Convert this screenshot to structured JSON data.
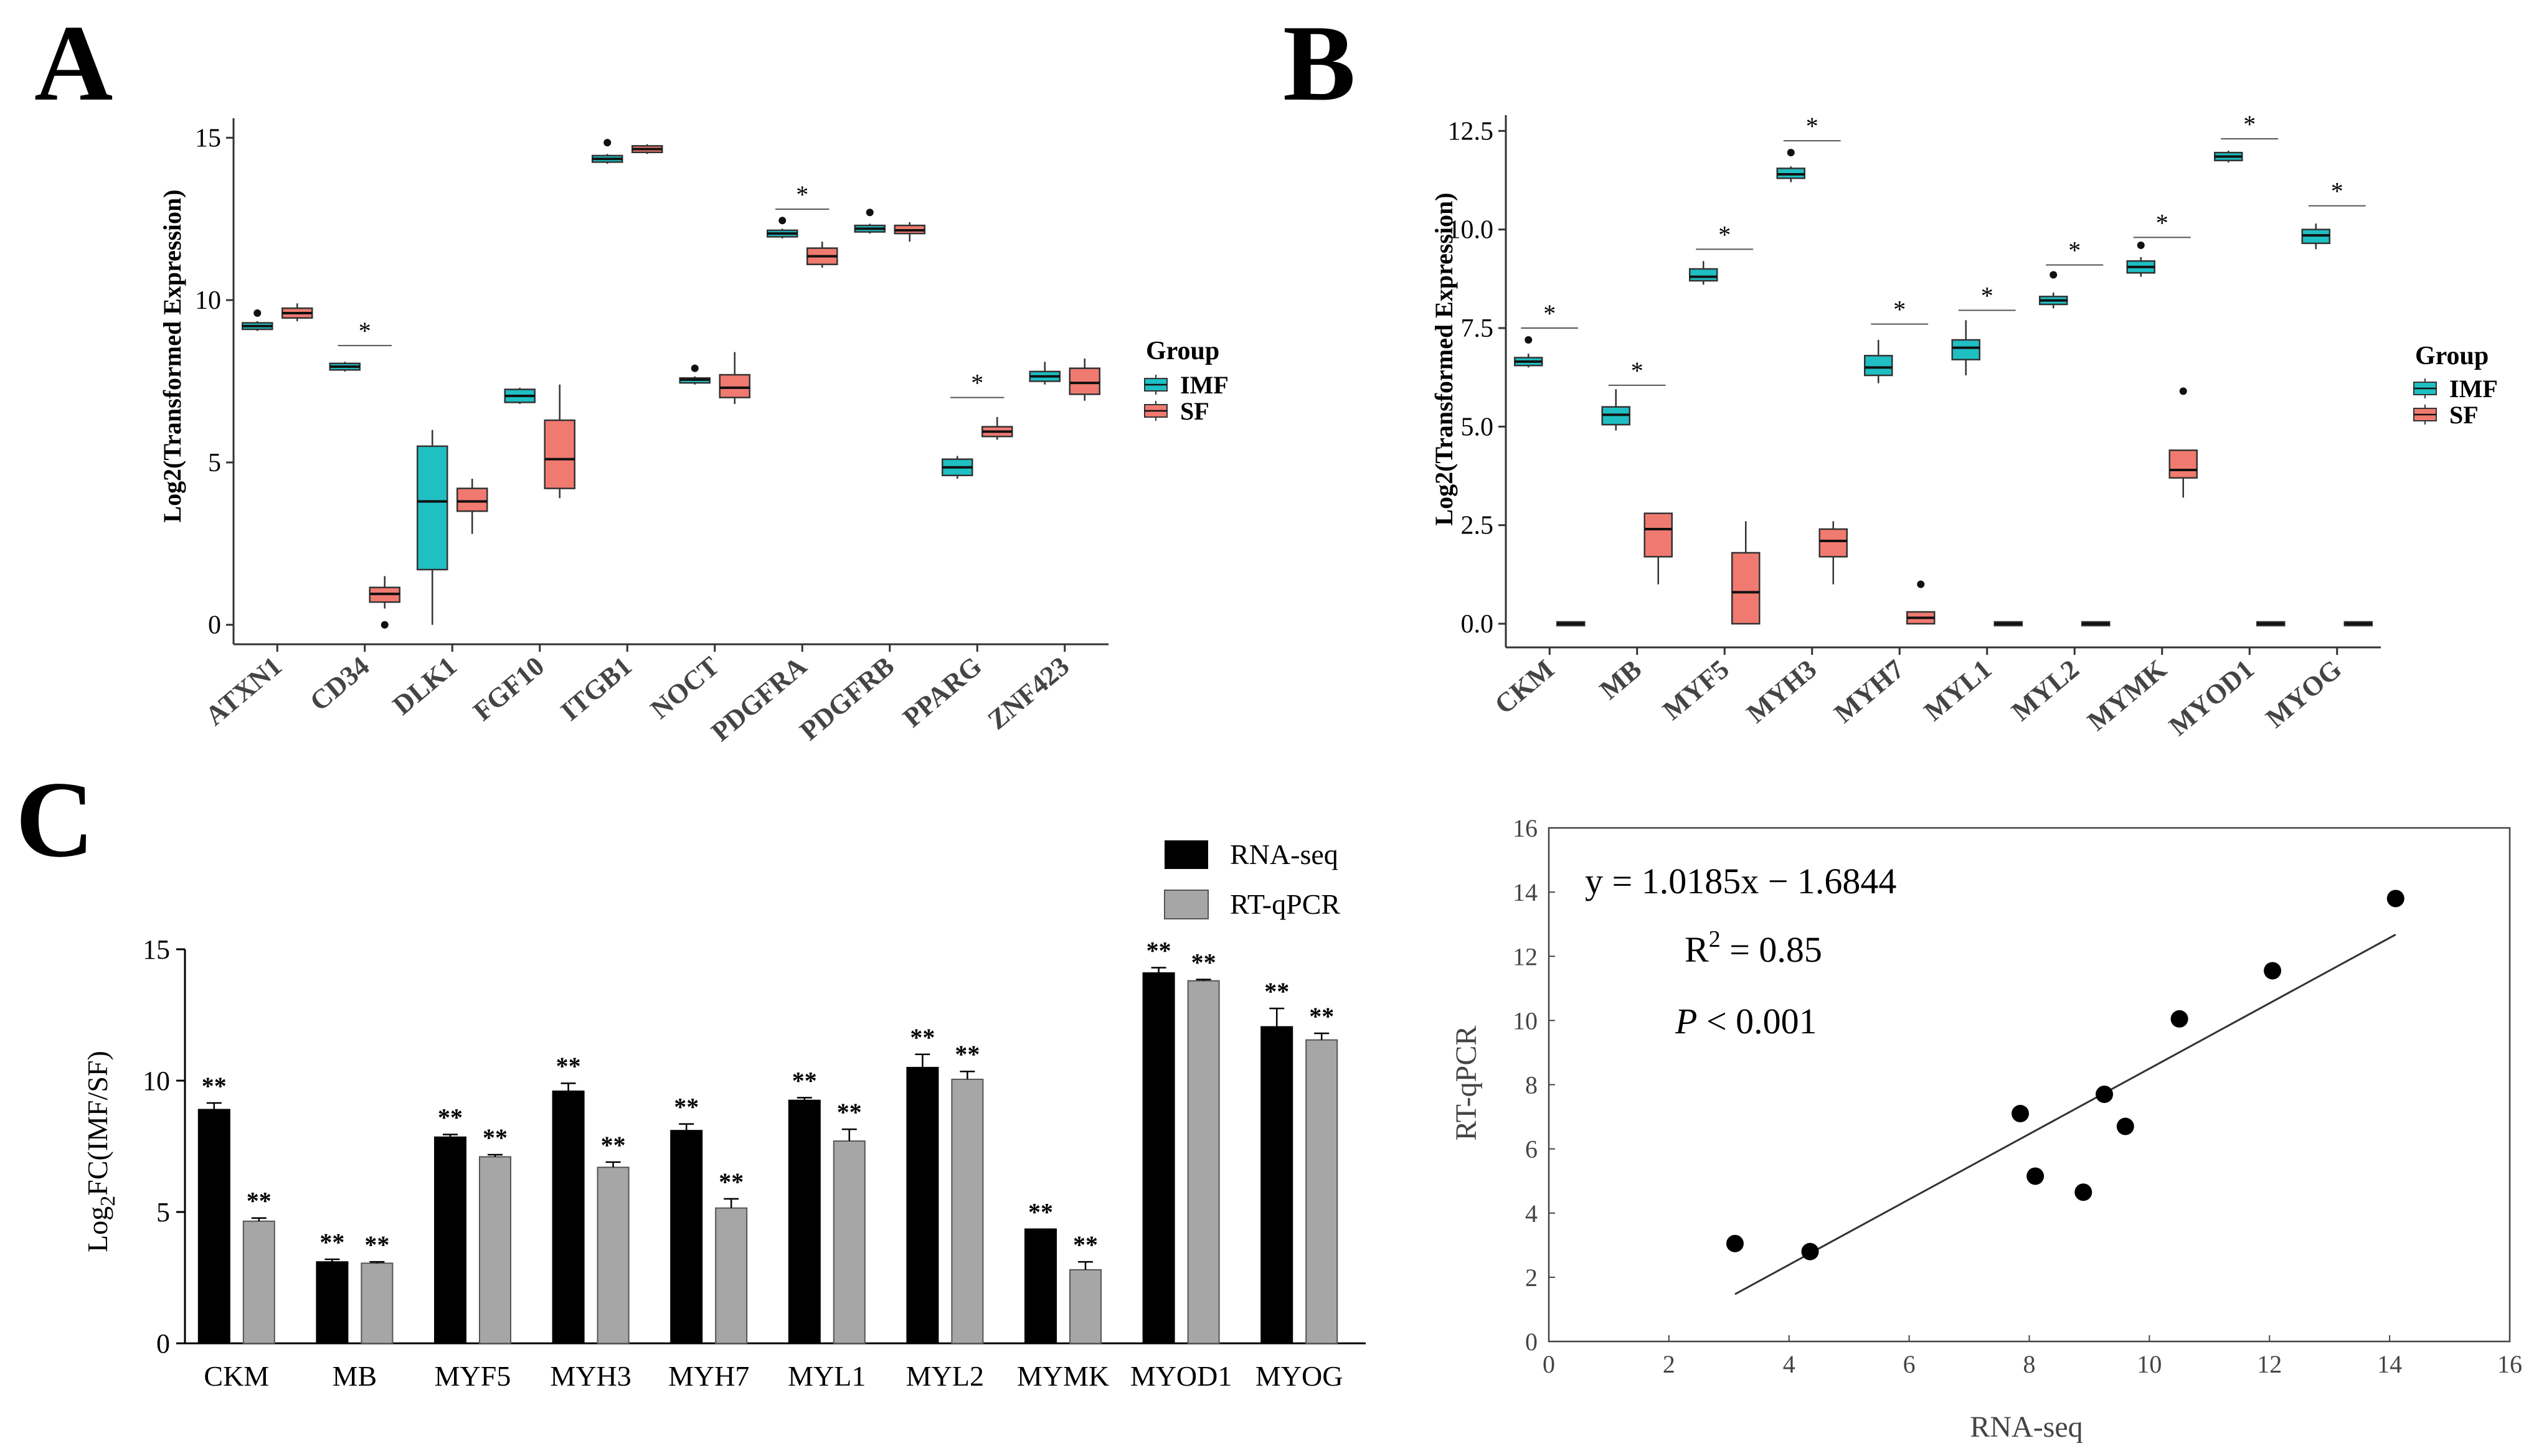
{
  "panel_labels": {
    "a": "A",
    "b": "B",
    "c": "C"
  },
  "colors": {
    "imf": "#1fbfc3",
    "sf": "#f17a70",
    "rnaseq": "#000000",
    "qpcr": "#a6a6a6"
  },
  "chart_data": [
    {
      "id": "A",
      "type": "box",
      "ylabel": "Log2(Transformed Expression)",
      "ylim": [
        -0.6,
        15.6
      ],
      "yticks": [
        0,
        5,
        10,
        15
      ],
      "categories": [
        "ATXN1",
        "CD34",
        "DLK1",
        "FGF10",
        "ITGB1",
        "NOCT",
        "PDGFRA",
        "PDGFRB",
        "PPARG",
        "ZNF423"
      ],
      "legend": {
        "title": "Group",
        "items": [
          "IMF",
          "SF"
        ]
      },
      "series": [
        {
          "name": "IMF",
          "boxes": [
            {
              "min": 9.05,
              "q1": 9.1,
              "median": 9.2,
              "q3": 9.3,
              "max": 9.35,
              "outliers": [
                9.6
              ]
            },
            {
              "min": 7.8,
              "q1": 7.85,
              "median": 7.95,
              "q3": 8.05,
              "max": 8.1,
              "outliers": []
            },
            {
              "min": 0,
              "q1": 1.7,
              "median": 3.8,
              "q3": 5.5,
              "max": 6.0,
              "outliers": []
            },
            {
              "min": 6.8,
              "q1": 6.85,
              "median": 7.05,
              "q3": 7.25,
              "max": 7.3,
              "outliers": []
            },
            {
              "min": 14.2,
              "q1": 14.25,
              "median": 14.35,
              "q3": 14.45,
              "max": 14.5,
              "outliers": [
                14.85
              ]
            },
            {
              "min": 7.4,
              "q1": 7.45,
              "median": 7.55,
              "q3": 7.6,
              "max": 7.65,
              "outliers": [
                7.9
              ]
            },
            {
              "min": 11.9,
              "q1": 11.95,
              "median": 12.05,
              "q3": 12.15,
              "max": 12.2,
              "outliers": [
                12.45
              ]
            },
            {
              "min": 12.05,
              "q1": 12.1,
              "median": 12.2,
              "q3": 12.3,
              "max": 12.35,
              "outliers": [
                12.7
              ]
            },
            {
              "min": 4.5,
              "q1": 4.6,
              "median": 4.85,
              "q3": 5.1,
              "max": 5.2,
              "outliers": []
            },
            {
              "min": 7.4,
              "q1": 7.5,
              "median": 7.65,
              "q3": 7.8,
              "max": 8.1,
              "outliers": []
            }
          ]
        },
        {
          "name": "SF",
          "boxes": [
            {
              "min": 9.35,
              "q1": 9.45,
              "median": 9.6,
              "q3": 9.75,
              "max": 9.9,
              "outliers": []
            },
            {
              "min": 0.5,
              "q1": 0.7,
              "median": 0.95,
              "q3": 1.15,
              "max": 1.5,
              "outliers": [
                0
              ]
            },
            {
              "min": 2.8,
              "q1": 3.5,
              "median": 3.8,
              "q3": 4.2,
              "max": 4.5,
              "outliers": []
            },
            {
              "min": 3.9,
              "q1": 4.2,
              "median": 5.1,
              "q3": 6.3,
              "max": 7.4,
              "outliers": []
            },
            {
              "min": 14.5,
              "q1": 14.55,
              "median": 14.65,
              "q3": 14.75,
              "max": 14.8,
              "outliers": []
            },
            {
              "min": 6.8,
              "q1": 7.0,
              "median": 7.3,
              "q3": 7.7,
              "max": 8.4,
              "outliers": []
            },
            {
              "min": 11.0,
              "q1": 11.1,
              "median": 11.35,
              "q3": 11.6,
              "max": 11.8,
              "outliers": []
            },
            {
              "min": 11.8,
              "q1": 12.05,
              "median": 12.15,
              "q3": 12.3,
              "max": 12.4,
              "outliers": []
            },
            {
              "min": 5.7,
              "q1": 5.8,
              "median": 5.95,
              "q3": 6.1,
              "max": 6.4,
              "outliers": []
            },
            {
              "min": 6.9,
              "q1": 7.1,
              "median": 7.45,
              "q3": 7.9,
              "max": 8.2,
              "outliers": []
            }
          ]
        }
      ],
      "significance": [
        {
          "index": 1,
          "label": "*",
          "y": 8.6
        },
        {
          "index": 6,
          "label": "*",
          "y": 12.8
        },
        {
          "index": 8,
          "label": "*",
          "y": 7.0
        }
      ]
    },
    {
      "id": "B",
      "type": "box",
      "ylabel": "Log2(Transformed Expression)",
      "ylim": [
        -0.6,
        12.9
      ],
      "yticks": [
        0.0,
        2.5,
        5.0,
        7.5,
        10.0,
        12.5
      ],
      "ytick_labels": [
        "0.0",
        "2.5",
        "5.0",
        "7.5",
        "10.0",
        "12.5"
      ],
      "categories": [
        "CKM",
        "MB",
        "MYF5",
        "MYH3",
        "MYH7",
        "MYL1",
        "MYL2",
        "MYMK",
        "MYOD1",
        "MYOG"
      ],
      "legend": {
        "title": "Group",
        "items": [
          "IMF",
          "SF"
        ]
      },
      "series": [
        {
          "name": "IMF",
          "boxes": [
            {
              "min": 6.5,
              "q1": 6.55,
              "median": 6.65,
              "q3": 6.75,
              "max": 6.85,
              "outliers": [
                7.2
              ]
            },
            {
              "min": 4.9,
              "q1": 5.05,
              "median": 5.3,
              "q3": 5.5,
              "max": 5.95,
              "outliers": []
            },
            {
              "min": 8.6,
              "q1": 8.7,
              "median": 8.8,
              "q3": 9.0,
              "max": 9.2,
              "outliers": []
            },
            {
              "min": 11.2,
              "q1": 11.3,
              "median": 11.4,
              "q3": 11.55,
              "max": 11.6,
              "outliers": [
                11.95
              ]
            },
            {
              "min": 6.1,
              "q1": 6.3,
              "median": 6.5,
              "q3": 6.8,
              "max": 7.2,
              "outliers": []
            },
            {
              "min": 6.3,
              "q1": 6.7,
              "median": 7.0,
              "q3": 7.2,
              "max": 7.7,
              "outliers": []
            },
            {
              "min": 8.0,
              "q1": 8.1,
              "median": 8.2,
              "q3": 8.3,
              "max": 8.4,
              "outliers": [
                8.85
              ]
            },
            {
              "min": 8.8,
              "q1": 8.9,
              "median": 9.05,
              "q3": 9.2,
              "max": 9.3,
              "outliers": [
                9.6
              ]
            },
            {
              "min": 11.7,
              "q1": 11.75,
              "median": 11.85,
              "q3": 11.95,
              "max": 12.0,
              "outliers": []
            },
            {
              "min": 9.5,
              "q1": 9.65,
              "median": 9.85,
              "q3": 10.0,
              "max": 10.15,
              "outliers": []
            }
          ]
        },
        {
          "name": "SF",
          "boxes": [
            {
              "min": 0,
              "q1": 0,
              "median": 0,
              "q3": 0,
              "max": 0,
              "outliers": []
            },
            {
              "min": 1.0,
              "q1": 1.7,
              "median": 2.4,
              "q3": 2.8,
              "max": 2.8,
              "outliers": []
            },
            {
              "min": 0,
              "q1": 0,
              "median": 0.8,
              "q3": 1.8,
              "max": 2.6,
              "outliers": []
            },
            {
              "min": 1.0,
              "q1": 1.7,
              "median": 2.1,
              "q3": 2.4,
              "max": 2.6,
              "outliers": []
            },
            {
              "min": 0,
              "q1": 0,
              "median": 0.15,
              "q3": 0.3,
              "max": 0.3,
              "outliers": [
                1.0
              ]
            },
            {
              "min": 0,
              "q1": 0,
              "median": 0,
              "q3": 0,
              "max": 0,
              "outliers": []
            },
            {
              "min": 0,
              "q1": 0,
              "median": 0,
              "q3": 0,
              "max": 0,
              "outliers": []
            },
            {
              "min": 3.2,
              "q1": 3.7,
              "median": 3.9,
              "q3": 4.4,
              "max": 4.4,
              "outliers": [
                5.9
              ]
            },
            {
              "min": 0,
              "q1": 0,
              "median": 0,
              "q3": 0,
              "max": 0,
              "outliers": []
            },
            {
              "min": 0,
              "q1": 0,
              "median": 0,
              "q3": 0,
              "max": 0,
              "outliers": []
            }
          ]
        }
      ],
      "significance": [
        {
          "index": 0,
          "label": "*",
          "y": 7.5
        },
        {
          "index": 1,
          "label": "*",
          "y": 6.05
        },
        {
          "index": 2,
          "label": "*",
          "y": 9.5
        },
        {
          "index": 3,
          "label": "*",
          "y": 12.25
        },
        {
          "index": 4,
          "label": "*",
          "y": 7.6
        },
        {
          "index": 5,
          "label": "*",
          "y": 7.95
        },
        {
          "index": 6,
          "label": "*",
          "y": 9.1
        },
        {
          "index": 7,
          "label": "*",
          "y": 9.8
        },
        {
          "index": 8,
          "label": "*",
          "y": 12.3
        },
        {
          "index": 9,
          "label": "*",
          "y": 10.6
        }
      ]
    },
    {
      "id": "C-bar",
      "type": "bar",
      "ylabel_main": "Log",
      "ylabel_sub": "2",
      "ylabel_rest": "FC(IMF/SF)",
      "ylim": [
        0,
        15
      ],
      "yticks": [
        0,
        5,
        10,
        15
      ],
      "categories": [
        "CKM",
        "MB",
        "MYF5",
        "MYH3",
        "MYH7",
        "MYL1",
        "MYL2",
        "MYMK",
        "MYOD1",
        "MYOG"
      ],
      "series": [
        {
          "name": "RNA-seq",
          "values": [
            8.9,
            3.1,
            7.85,
            9.6,
            8.1,
            9.25,
            10.5,
            4.35,
            14.1,
            12.05
          ],
          "errors": [
            0.25,
            0.1,
            0.1,
            0.3,
            0.25,
            0.1,
            0.5,
            0.0,
            0.2,
            0.7
          ],
          "labels": [
            "**",
            "**",
            "**",
            "**",
            "**",
            "**",
            "**",
            "**",
            "**",
            "**"
          ]
        },
        {
          "name": "RT-qPCR",
          "values": [
            4.65,
            3.05,
            7.1,
            6.7,
            5.15,
            7.7,
            10.05,
            2.8,
            13.8,
            11.55
          ],
          "errors": [
            0.12,
            0.05,
            0.08,
            0.2,
            0.35,
            0.45,
            0.3,
            0.3,
            0.05,
            0.25
          ],
          "labels": [
            "**",
            "**",
            "**",
            "**",
            "**",
            "**",
            "**",
            "**",
            "**",
            "**"
          ]
        }
      ]
    },
    {
      "id": "C-scatter",
      "type": "scatter",
      "xlabel": "RNA-seq",
      "ylabel": "RT-qPCR",
      "xlim": [
        0,
        16
      ],
      "ylim": [
        0,
        16
      ],
      "xticks": [
        0,
        2,
        4,
        6,
        8,
        10,
        12,
        14,
        16
      ],
      "yticks": [
        0,
        2,
        4,
        6,
        8,
        10,
        12,
        14,
        16
      ],
      "points": [
        {
          "x": 3.1,
          "y": 3.05
        },
        {
          "x": 4.35,
          "y": 2.8
        },
        {
          "x": 7.85,
          "y": 7.1
        },
        {
          "x": 8.1,
          "y": 5.15
        },
        {
          "x": 8.9,
          "y": 4.65
        },
        {
          "x": 9.25,
          "y": 7.7
        },
        {
          "x": 9.6,
          "y": 6.7
        },
        {
          "x": 10.5,
          "y": 10.05
        },
        {
          "x": 12.05,
          "y": 11.55
        },
        {
          "x": 14.1,
          "y": 13.8
        }
      ],
      "fit": {
        "slope": 1.0185,
        "intercept": -1.6844,
        "x_range": [
          3.1,
          14.1
        ]
      },
      "annotations": {
        "equation": "y = 1.0185x − 1.6844",
        "r2_prefix": "R",
        "r2_sup": "2",
        "r2_suffix": " = 0.85",
        "p_italic": "P",
        "p_rest": " < 0.001"
      }
    }
  ]
}
